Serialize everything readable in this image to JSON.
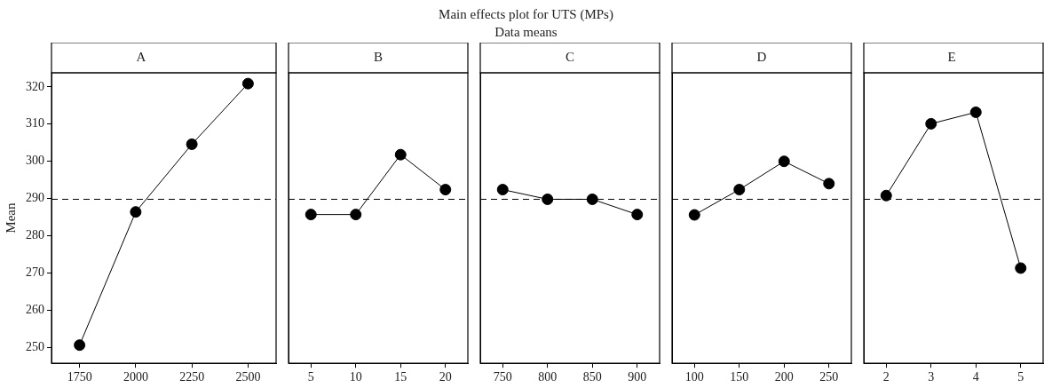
{
  "chart_data": [
    {
      "type": "other",
      "title": "Main effects plot for UTS (MPs)",
      "subtitle": "Data means"
    },
    {
      "type": "line",
      "title": "A",
      "ylabel": "Mean",
      "categories": [
        "1750",
        "2000",
        "2250",
        "2500"
      ],
      "values": [
        250.6,
        286.4,
        304.6,
        320.9
      ],
      "color": "#000000",
      "ylim": [
        245.7,
        323.8
      ],
      "yticks": [
        250,
        260,
        270,
        280,
        290,
        300,
        310,
        320
      ],
      "grid": false,
      "marker": "circle",
      "ref_lines": [
        {
          "axis": "y",
          "value": 289.8,
          "line_style": "dashed",
          "color": "#000000"
        }
      ]
    },
    {
      "type": "line",
      "title": "B",
      "categories": [
        "5",
        "10",
        "15",
        "20"
      ],
      "values": [
        285.7,
        285.7,
        301.8,
        292.4
      ],
      "color": "#000000",
      "ylim": [
        245.7,
        323.8
      ],
      "yticks": [
        250,
        260,
        270,
        280,
        290,
        300,
        310,
        320
      ],
      "tick_labels": "x",
      "grid": false,
      "marker": "circle",
      "ref_lines": [
        {
          "axis": "y",
          "value": 289.8,
          "line_style": "dashed",
          "color": "#000000"
        }
      ]
    },
    {
      "type": "line",
      "title": "C",
      "categories": [
        "750",
        "800",
        "850",
        "900"
      ],
      "values": [
        292.4,
        289.8,
        289.8,
        285.7
      ],
      "color": "#000000",
      "ylim": [
        245.7,
        323.8
      ],
      "yticks": [
        250,
        260,
        270,
        280,
        290,
        300,
        310,
        320
      ],
      "tick_labels": "x",
      "grid": false,
      "marker": "circle",
      "ref_lines": [
        {
          "axis": "y",
          "value": 289.8,
          "line_style": "dashed",
          "color": "#000000"
        }
      ]
    },
    {
      "type": "line",
      "title": "D",
      "categories": [
        "100",
        "150",
        "200",
        "250"
      ],
      "values": [
        285.6,
        292.4,
        300.0,
        294.0
      ],
      "color": "#000000",
      "ylim": [
        245.7,
        323.8
      ],
      "yticks": [
        250,
        260,
        270,
        280,
        290,
        300,
        310,
        320
      ],
      "tick_labels": "x",
      "grid": false,
      "marker": "circle",
      "ref_lines": [
        {
          "axis": "y",
          "value": 289.8,
          "line_style": "dashed",
          "color": "#000000"
        }
      ]
    },
    {
      "type": "line",
      "title": "E",
      "categories": [
        "2",
        "3",
        "4",
        "5"
      ],
      "values": [
        290.8,
        310.1,
        313.2,
        271.3
      ],
      "color": "#000000",
      "ylim": [
        245.7,
        323.8
      ],
      "yticks": [
        250,
        260,
        270,
        280,
        290,
        300,
        310,
        320
      ],
      "tick_labels": "x",
      "grid": false,
      "marker": "circle",
      "ref_lines": [
        {
          "axis": "y",
          "value": 289.8,
          "line_style": "dashed",
          "color": "#000000"
        }
      ]
    }
  ]
}
